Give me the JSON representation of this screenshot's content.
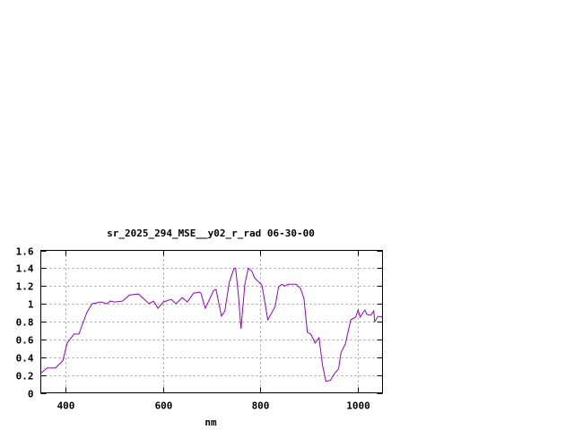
{
  "chart_data": {
    "type": "line",
    "title": "sr_2025_294_MSE__y02_r_rad 06-30-00",
    "xlabel": "nm",
    "ylabel": "",
    "xlim": [
      350,
      1050
    ],
    "ylim": [
      0,
      1.6
    ],
    "grid": true,
    "legend": "none",
    "color": "#9400d3",
    "xticks": [
      400,
      600,
      800,
      1000
    ],
    "xtick_labels": [
      "400",
      "600",
      "800",
      "1000"
    ],
    "yticks": [
      0,
      0.2,
      0.4,
      0.6,
      0.8,
      1,
      1.2,
      1.4,
      1.6
    ],
    "ytick_labels": [
      "0",
      "0.2",
      "0.4",
      "0.6",
      "0.8",
      "1",
      "1.2",
      "1.4",
      "1.6"
    ],
    "series": [
      {
        "x": [
          350,
          363,
          380,
          395,
          404,
          418,
          428,
          444,
          455,
          473,
          486,
          492,
          501,
          517,
          532,
          550,
          572,
          581,
          590,
          601,
          617,
          627,
          640,
          650,
          663,
          675,
          678,
          687,
          704,
          709,
          720,
          727,
          736,
          746,
          749,
          755,
          760,
          768,
          775,
          782,
          788,
          803,
          815,
          830,
          837,
          844,
          850,
          857,
          873,
          882,
          889,
          896,
          903,
          912,
          920,
          927,
          934,
          943,
          951,
          960,
          965,
          974,
          985,
          995,
          1000,
          1004,
          1010,
          1014,
          1018,
          1026,
          1032,
          1034,
          1041,
          1050
        ],
        "y": [
          0.22,
          0.28,
          0.28,
          0.36,
          0.56,
          0.66,
          0.66,
          0.9,
          1.0,
          1.02,
          1.0,
          1.03,
          1.02,
          1.03,
          1.1,
          1.11,
          1.0,
          1.03,
          0.95,
          1.02,
          1.05,
          1.0,
          1.07,
          1.02,
          1.12,
          1.13,
          1.12,
          0.95,
          1.15,
          1.16,
          0.86,
          0.92,
          1.24,
          1.4,
          1.4,
          1.09,
          0.72,
          1.22,
          1.4,
          1.37,
          1.29,
          1.21,
          0.82,
          0.97,
          1.19,
          1.22,
          1.2,
          1.22,
          1.22,
          1.17,
          1.06,
          0.68,
          0.66,
          0.56,
          0.62,
          0.31,
          0.13,
          0.14,
          0.21,
          0.27,
          0.45,
          0.55,
          0.82,
          0.85,
          0.93,
          0.85,
          0.9,
          0.93,
          0.88,
          0.87,
          0.92,
          0.8,
          0.86,
          0.85
        ]
      }
    ]
  }
}
